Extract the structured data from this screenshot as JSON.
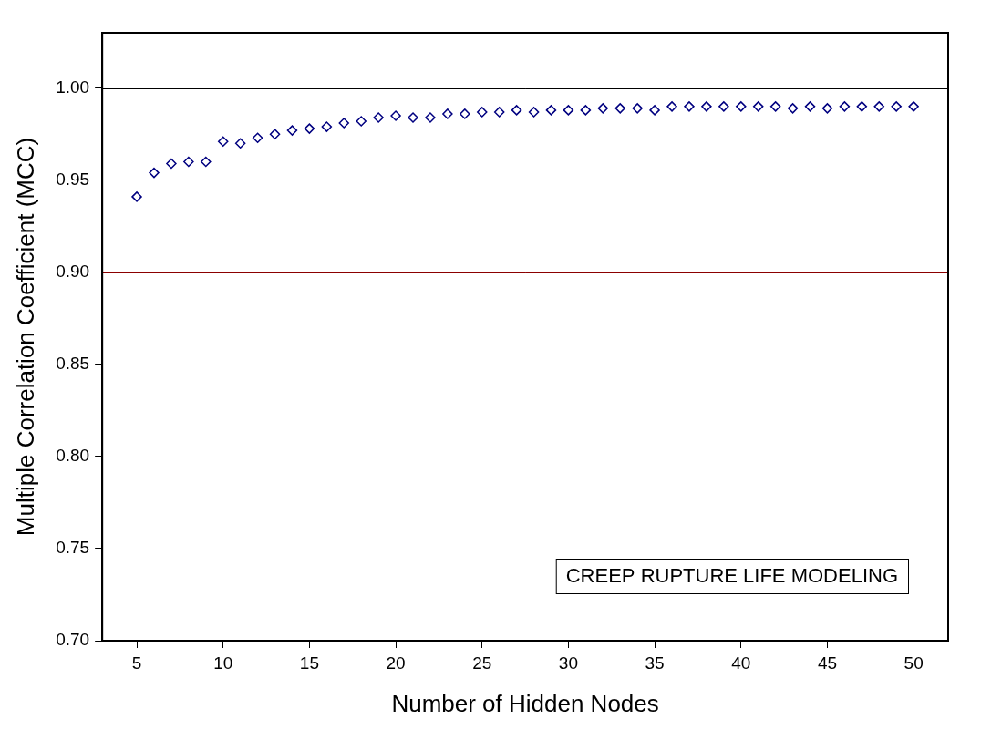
{
  "chart_data": {
    "type": "scatter",
    "x_label": "Number of Hidden Nodes",
    "y_label": "Multiple Correlation Coefficient (MCC)",
    "annotations": [
      "CREEP RUPTURE LIFE MODELING"
    ],
    "x": [
      5,
      6,
      7,
      8,
      9,
      10,
      11,
      12,
      13,
      14,
      15,
      16,
      17,
      18,
      19,
      20,
      21,
      22,
      23,
      24,
      25,
      26,
      27,
      28,
      29,
      30,
      31,
      32,
      33,
      34,
      35,
      36,
      37,
      38,
      39,
      40,
      41,
      42,
      43,
      44,
      45,
      46,
      47,
      48,
      49,
      50
    ],
    "values": [
      0.941,
      0.954,
      0.959,
      0.96,
      0.96,
      0.971,
      0.97,
      0.973,
      0.975,
      0.977,
      0.978,
      0.979,
      0.981,
      0.982,
      0.984,
      0.985,
      0.984,
      0.984,
      0.986,
      0.986,
      0.987,
      0.987,
      0.988,
      0.987,
      0.988,
      0.988,
      0.988,
      0.989,
      0.989,
      0.989,
      0.988,
      0.99,
      0.99,
      0.99,
      0.99,
      0.99,
      0.99,
      0.99,
      0.989,
      0.99,
      0.989,
      0.99,
      0.99,
      0.99,
      0.99,
      0.99
    ],
    "color": "#000080",
    "marker": "diamond",
    "xlim": [
      3,
      52
    ],
    "xticks": [
      5,
      10,
      15,
      20,
      25,
      30,
      35,
      40,
      45,
      50
    ],
    "ylim": [
      0.7,
      1.03
    ],
    "yticks": [
      {
        "value": 0.7,
        "label": "0.70"
      },
      0.75,
      {
        "value": 0.8,
        "label": "0.80"
      },
      0.85,
      {
        "value": 0.9,
        "label": "0.90"
      },
      0.95,
      {
        "value": 1.0,
        "label": "1.00"
      }
    ],
    "hlines": [
      {
        "value": 1.0,
        "color": "#000000"
      },
      {
        "value": 0.9,
        "color": "#8b0000"
      }
    ],
    "grid": false
  }
}
